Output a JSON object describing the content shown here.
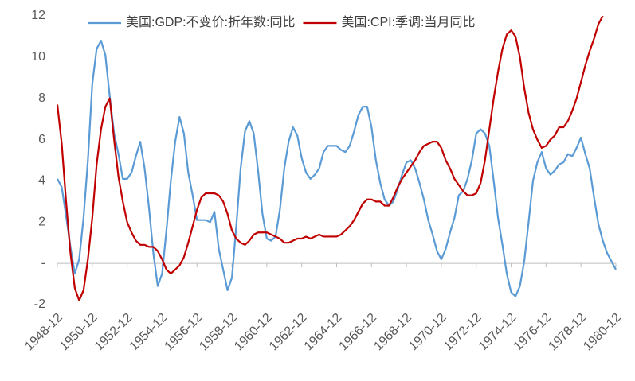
{
  "chart_data": {
    "type": "line",
    "categories": [
      "1948-12",
      null,
      null,
      null,
      null,
      null,
      null,
      null,
      "1950-12",
      null,
      null,
      null,
      null,
      null,
      null,
      null,
      "1952-12",
      null,
      null,
      null,
      null,
      null,
      null,
      null,
      "1954-12",
      null,
      null,
      null,
      null,
      null,
      null,
      null,
      "1956-12",
      null,
      null,
      null,
      null,
      null,
      null,
      null,
      "1958-12",
      null,
      null,
      null,
      null,
      null,
      null,
      null,
      "1960-12",
      null,
      null,
      null,
      null,
      null,
      null,
      null,
      "1962-12",
      null,
      null,
      null,
      null,
      null,
      null,
      null,
      "1964-12",
      null,
      null,
      null,
      null,
      null,
      null,
      null,
      "1966-12",
      null,
      null,
      null,
      null,
      null,
      null,
      null,
      "1968-12",
      null,
      null,
      null,
      null,
      null,
      null,
      null,
      "1970-12",
      null,
      null,
      null,
      null,
      null,
      null,
      null,
      "1972-12",
      null,
      null,
      null,
      null,
      null,
      null,
      null,
      "1974-12",
      null,
      null,
      null,
      null,
      null,
      null,
      null,
      "1976-12",
      null,
      null,
      null,
      null,
      null,
      null,
      null,
      "1978-12",
      null,
      null,
      null,
      null,
      null,
      null,
      null,
      "1980-12"
    ],
    "series": [
      {
        "name": "美国:GDP:不变价:折年数:同比",
        "color": "#5b9bd5",
        "values": [
          4.1,
          3.7,
          2.3,
          0.8,
          -0.5,
          0.2,
          2.2,
          5.0,
          8.7,
          10.4,
          10.8,
          10.1,
          8.1,
          6.3,
          5.3,
          4.1,
          4.1,
          4.4,
          5.2,
          5.9,
          4.6,
          2.7,
          0.5,
          -1.1,
          -0.5,
          1.6,
          4.0,
          5.9,
          7.1,
          6.3,
          4.4,
          3.3,
          2.1,
          2.1,
          2.1,
          2.0,
          2.5,
          0.7,
          -0.3,
          -1.3,
          -0.7,
          1.8,
          4.6,
          6.4,
          6.9,
          6.3,
          4.5,
          2.4,
          1.2,
          1.1,
          1.3,
          2.6,
          4.6,
          5.9,
          6.6,
          6.2,
          5.1,
          4.4,
          4.1,
          4.3,
          4.6,
          5.4,
          5.7,
          5.7,
          5.7,
          5.5,
          5.4,
          5.7,
          6.4,
          7.2,
          7.6,
          7.6,
          6.6,
          5.0,
          3.9,
          3.1,
          2.8,
          3.0,
          3.6,
          4.3,
          4.9,
          5.0,
          4.6,
          3.9,
          3.1,
          2.1,
          1.4,
          0.6,
          0.2,
          0.7,
          1.5,
          2.2,
          3.3,
          3.5,
          4.1,
          5.0,
          6.3,
          6.5,
          6.3,
          5.7,
          4.0,
          2.2,
          0.9,
          -0.5,
          -1.4,
          -1.6,
          -1.1,
          0.1,
          2.0,
          4.0,
          4.9,
          5.4,
          4.6,
          4.3,
          4.5,
          4.8,
          4.9,
          5.3,
          5.2,
          5.6,
          6.1,
          5.3,
          4.6,
          3.2,
          1.9,
          1.1,
          0.5,
          0.1,
          -0.3
        ]
      },
      {
        "name": "美国:CPI:季调:当月同比",
        "color": "#c00000",
        "values": [
          7.7,
          5.8,
          3.0,
          0.5,
          -1.2,
          -1.8,
          -1.3,
          0.2,
          2.2,
          4.8,
          6.5,
          7.6,
          8.0,
          6.0,
          4.2,
          3.0,
          2.0,
          1.5,
          1.1,
          0.9,
          0.9,
          0.8,
          0.8,
          0.6,
          0.2,
          -0.3,
          -0.5,
          -0.3,
          -0.1,
          0.3,
          1.0,
          1.8,
          2.6,
          3.2,
          3.4,
          3.4,
          3.4,
          3.3,
          3.0,
          2.4,
          1.6,
          1.2,
          1.0,
          0.9,
          1.1,
          1.4,
          1.5,
          1.5,
          1.5,
          1.4,
          1.3,
          1.2,
          1.0,
          1.0,
          1.1,
          1.2,
          1.2,
          1.3,
          1.2,
          1.3,
          1.4,
          1.3,
          1.3,
          1.3,
          1.3,
          1.4,
          1.6,
          1.8,
          2.1,
          2.5,
          2.9,
          3.1,
          3.1,
          3.0,
          3.0,
          2.8,
          2.8,
          3.2,
          3.7,
          4.1,
          4.4,
          4.7,
          5.0,
          5.4,
          5.7,
          5.8,
          5.9,
          5.9,
          5.6,
          5.0,
          4.6,
          4.1,
          3.8,
          3.5,
          3.3,
          3.3,
          3.4,
          3.9,
          5.0,
          6.5,
          8.0,
          9.3,
          10.4,
          11.1,
          11.3,
          11.0,
          10.0,
          8.5,
          7.3,
          6.5,
          6.0,
          5.6,
          5.7,
          6.0,
          6.2,
          6.6,
          6.6,
          6.9,
          7.4,
          8.0,
          8.8,
          9.6,
          10.3,
          10.9,
          11.6,
          12.0,
          null,
          null,
          null
        ]
      }
    ],
    "ylim": [
      -2,
      12
    ],
    "yticks": [
      -2,
      {
        "value": 0,
        "label": "-"
      },
      2,
      4,
      6,
      8,
      10,
      12
    ],
    "legend": "top",
    "grid": false
  }
}
